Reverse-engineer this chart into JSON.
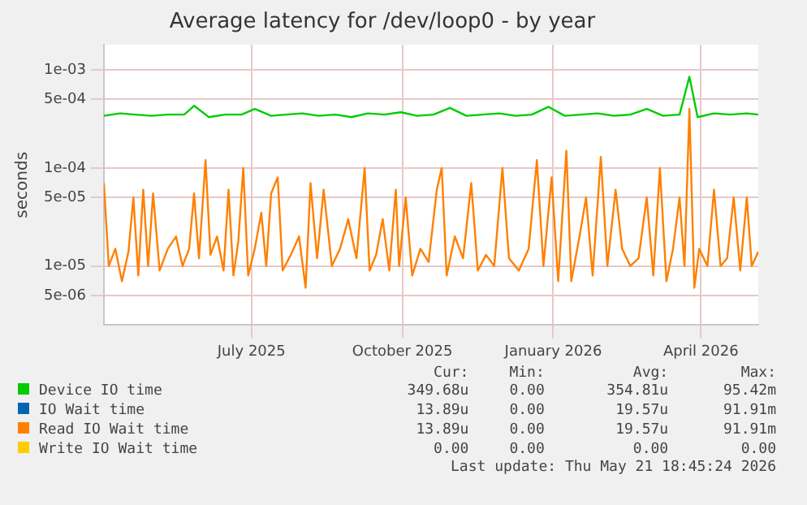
{
  "chart_data": {
    "type": "line",
    "title": "Average latency for /dev/loop0 - by year",
    "ylabel": "seconds",
    "log": "y",
    "grid": true,
    "legend": "bottom",
    "marker": "none",
    "line_style": "solid",
    "xlim": [
      "2025-04-17",
      "2026-05-21"
    ],
    "xticks": [
      {
        "value": "2025-07-16",
        "label": "July 2025"
      },
      {
        "value": "2025-10-16",
        "label": "October 2025"
      },
      {
        "value": "2026-01-16",
        "label": "January 2026"
      },
      {
        "value": "2026-04-16",
        "label": "April 2026"
      }
    ],
    "ylim": [
      2.5e-06,
      0.0018
    ],
    "yticks": [
      {
        "value": 5e-06,
        "label": "5e-06"
      },
      {
        "value": 1e-05,
        "label": "1e-05"
      },
      {
        "value": 5e-05,
        "label": "5e-05"
      },
      {
        "value": 0.0001,
        "label": "1e-04"
      },
      {
        "value": 0.0005,
        "label": "5e-04"
      },
      {
        "value": 0.001,
        "label": "1e-03"
      }
    ],
    "series": [
      {
        "name": "Device IO time",
        "color": "#00cc00",
        "x": [
          "2025-04-17",
          "2025-04-27",
          "2025-05-06",
          "2025-05-16",
          "2025-05-26",
          "2025-06-05",
          "2025-06-11",
          "2025-06-20",
          "2025-06-30",
          "2025-07-10",
          "2025-07-18",
          "2025-07-28",
          "2025-08-06",
          "2025-08-16",
          "2025-08-26",
          "2025-09-05",
          "2025-09-15",
          "2025-09-25",
          "2025-10-05",
          "2025-10-15",
          "2025-10-25",
          "2025-11-04",
          "2025-11-14",
          "2025-11-24",
          "2025-12-04",
          "2025-12-14",
          "2025-12-24",
          "2026-01-03",
          "2026-01-13",
          "2026-01-23",
          "2026-02-02",
          "2026-02-12",
          "2026-02-22",
          "2026-03-04",
          "2026-03-14",
          "2026-03-24",
          "2026-04-03",
          "2026-04-09",
          "2026-04-14",
          "2026-04-24",
          "2026-05-04",
          "2026-05-14",
          "2026-05-21"
        ],
        "values": [
          0.00034,
          0.00036,
          0.00035,
          0.00034,
          0.00035,
          0.00035,
          0.00043,
          0.00033,
          0.00035,
          0.00035,
          0.0004,
          0.00034,
          0.00035,
          0.00036,
          0.00034,
          0.00035,
          0.00033,
          0.00036,
          0.00035,
          0.00037,
          0.00034,
          0.00035,
          0.00041,
          0.00034,
          0.00035,
          0.00036,
          0.00034,
          0.00035,
          0.00042,
          0.00034,
          0.00035,
          0.00036,
          0.00034,
          0.00035,
          0.0004,
          0.00034,
          0.00035,
          0.00085,
          0.00033,
          0.00036,
          0.00035,
          0.00036,
          0.00035
        ]
      },
      {
        "name": "IO Wait time",
        "color": "#0066b3"
      },
      {
        "name": "Read IO Wait time",
        "color": "#ff8000",
        "x": [
          "2025-04-17",
          "2025-04-20",
          "2025-04-24",
          "2025-04-28",
          "2025-05-02",
          "2025-05-05",
          "2025-05-08",
          "2025-05-11",
          "2025-05-14",
          "2025-05-17",
          "2025-05-21",
          "2025-05-26",
          "2025-05-31",
          "2025-06-04",
          "2025-06-08",
          "2025-06-11",
          "2025-06-14",
          "2025-06-18",
          "2025-06-21",
          "2025-06-25",
          "2025-06-29",
          "2025-07-02",
          "2025-07-05",
          "2025-07-08",
          "2025-07-11",
          "2025-07-14",
          "2025-07-18",
          "2025-07-22",
          "2025-07-25",
          "2025-07-28",
          "2025-08-01",
          "2025-08-04",
          "2025-08-09",
          "2025-08-14",
          "2025-08-18",
          "2025-08-21",
          "2025-08-25",
          "2025-08-29",
          "2025-09-03",
          "2025-09-08",
          "2025-09-13",
          "2025-09-18",
          "2025-09-23",
          "2025-09-26",
          "2025-09-30",
          "2025-10-04",
          "2025-10-08",
          "2025-10-12",
          "2025-10-14",
          "2025-10-18",
          "2025-10-22",
          "2025-10-27",
          "2025-11-01",
          "2025-11-06",
          "2025-11-09",
          "2025-11-12",
          "2025-11-17",
          "2025-11-22",
          "2025-11-27",
          "2025-12-01",
          "2025-12-06",
          "2025-12-11",
          "2025-12-16",
          "2025-12-20",
          "2025-12-26",
          "2026-01-01",
          "2026-01-06",
          "2026-01-10",
          "2026-01-15",
          "2026-01-19",
          "2026-01-24",
          "2026-01-27",
          "2026-02-01",
          "2026-02-05",
          "2026-02-09",
          "2026-02-14",
          "2026-02-18",
          "2026-02-23",
          "2026-02-27",
          "2026-03-04",
          "2026-03-09",
          "2026-03-14",
          "2026-03-18",
          "2026-03-22",
          "2026-03-26",
          "2026-03-30",
          "2026-04-03",
          "2026-04-06",
          "2026-04-09",
          "2026-04-12",
          "2026-04-15",
          "2026-04-20",
          "2026-04-24",
          "2026-04-28",
          "2026-05-02",
          "2026-05-06",
          "2026-05-10",
          "2026-05-14",
          "2026-05-17",
          "2026-05-21"
        ],
        "values": [
          7e-05,
          1e-05,
          1.5e-05,
          7e-06,
          1.4e-05,
          5e-05,
          8e-06,
          6e-05,
          1e-05,
          5.5e-05,
          9e-06,
          1.5e-05,
          2e-05,
          1e-05,
          1.5e-05,
          5.5e-05,
          1.2e-05,
          0.00012,
          1.3e-05,
          2e-05,
          9e-06,
          6e-05,
          8e-06,
          1.8e-05,
          0.0001,
          8e-06,
          1.5e-05,
          3.5e-05,
          1e-05,
          5.5e-05,
          8e-05,
          9e-06,
          1.3e-05,
          2e-05,
          6e-06,
          7e-05,
          1.2e-05,
          6e-05,
          1e-05,
          1.5e-05,
          3e-05,
          1.2e-05,
          0.0001,
          9e-06,
          1.3e-05,
          3e-05,
          9e-06,
          6e-05,
          1e-05,
          5e-05,
          8e-06,
          1.5e-05,
          1.1e-05,
          6e-05,
          0.0001,
          8e-06,
          2e-05,
          1.2e-05,
          7e-05,
          9e-06,
          1.3e-05,
          1e-05,
          0.0001,
          1.2e-05,
          9e-06,
          1.5e-05,
          0.00012,
          1e-05,
          8e-05,
          7e-06,
          0.00015,
          7e-06,
          2e-05,
          5e-05,
          8e-06,
          0.00013,
          1e-05,
          6e-05,
          1.5e-05,
          1e-05,
          1.2e-05,
          5e-05,
          8e-06,
          0.0001,
          7e-06,
          1.5e-05,
          5e-05,
          1e-05,
          0.0004,
          6e-06,
          1.5e-05,
          1e-05,
          6e-05,
          1e-05,
          1.2e-05,
          5e-05,
          9e-06,
          5e-05,
          1e-05,
          1.4e-05
        ]
      },
      {
        "name": "Write IO Wait time",
        "color": "#ffcc00"
      }
    ],
    "annotations": [
      "Cur:",
      "Min:",
      "Avg:",
      "Max:",
      "349.68u",
      "0.00",
      "354.81u",
      "95.42m",
      "13.89u",
      "0.00",
      "19.57u",
      "91.91m",
      "13.89u",
      "0.00",
      "19.57u",
      "91.91m",
      "0.00",
      "0.00",
      "0.00",
      "0.00",
      "Last update: Thu May 21 18:45:24 2026"
    ]
  }
}
